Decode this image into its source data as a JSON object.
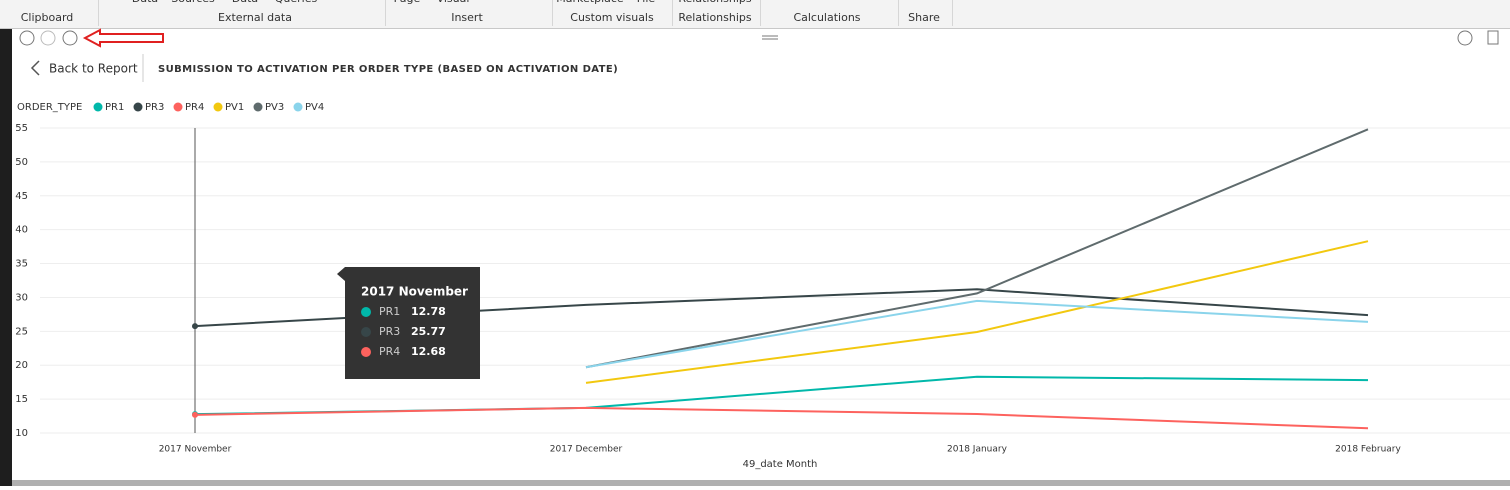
{
  "ribbon": {
    "top": [
      "Data",
      "Sources",
      "Data",
      "Queries",
      "Page",
      "Visual",
      "Marketplace",
      "File",
      "Relationships"
    ],
    "groups": [
      "Clipboard",
      "External data",
      "Insert",
      "Custom visuals",
      "Relationships",
      "Calculations",
      "Share"
    ]
  },
  "back_button": "Back to Report",
  "chart_data": {
    "type": "line",
    "title": "SUBMISSION TO ACTIVATION PER ORDER TYPE (BASED ON ACTIVATION DATE)",
    "legend_title": "ORDER_TYPE",
    "x_label": "49_date Month",
    "categories": [
      "2017 November",
      "2017 December",
      "2018 January",
      "2018 February"
    ],
    "series": [
      {
        "name": "PR1",
        "color": "#01b8aa",
        "values": [
          12.78,
          13.7,
          18.3,
          17.8
        ]
      },
      {
        "name": "PR3",
        "color": "#374649",
        "values": [
          25.77,
          28.9,
          31.2,
          27.4
        ]
      },
      {
        "name": "PR4",
        "color": "#fd625e",
        "values": [
          12.68,
          13.7,
          12.8,
          10.7
        ]
      },
      {
        "name": "PV1",
        "color": "#f2c80f",
        "values": [
          null,
          17.4,
          24.9,
          38.3
        ]
      },
      {
        "name": "PV3",
        "color": "#5f6b6d",
        "values": [
          null,
          19.7,
          30.6,
          54.8
        ]
      },
      {
        "name": "PV4",
        "color": "#8ad4eb",
        "values": [
          null,
          19.7,
          29.5,
          26.4
        ]
      }
    ],
    "ylim": [
      10,
      55
    ],
    "yticks": [
      10,
      15,
      20,
      25,
      30,
      35,
      40,
      45,
      50,
      55
    ],
    "grid": true,
    "tooltip": {
      "category": 0,
      "series": [
        0,
        1,
        2
      ]
    }
  }
}
